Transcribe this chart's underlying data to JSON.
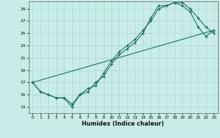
{
  "xlabel": "Humidex (Indice chaleur)",
  "bg_color": "#c8ece8",
  "grid_color": "#b0d8d4",
  "line_color": "#1a6b60",
  "xlim": [
    -0.5,
    23.5
  ],
  "ylim": [
    12.0,
    30.2
  ],
  "yticks": [
    13,
    15,
    17,
    19,
    21,
    23,
    25,
    27,
    29
  ],
  "xticks": [
    0,
    1,
    2,
    3,
    4,
    5,
    6,
    7,
    8,
    9,
    10,
    11,
    12,
    13,
    14,
    15,
    16,
    17,
    18,
    19,
    20,
    21,
    22,
    23
  ],
  "line1_x": [
    0,
    1,
    2,
    3,
    4,
    5,
    6,
    7,
    8,
    9,
    10,
    11,
    12,
    13,
    14,
    15,
    16,
    17,
    18,
    19,
    20,
    21,
    22,
    23
  ],
  "line1_y": [
    17,
    15.5,
    15,
    14.5,
    14.5,
    13,
    15,
    15.5,
    17,
    18,
    20,
    21.5,
    22.5,
    23.5,
    25,
    27.5,
    29.5,
    29.5,
    30,
    30,
    29,
    27.5,
    26,
    25
  ],
  "line2_x": [
    0,
    1,
    2,
    3,
    4,
    5,
    6,
    7,
    8,
    9,
    10,
    11,
    12,
    13,
    14,
    15,
    16,
    17,
    18,
    19,
    20,
    21,
    22,
    23
  ],
  "line2_y": [
    17,
    15.5,
    15,
    14.5,
    14.5,
    13.5,
    15,
    16,
    16.5,
    18.5,
    20.5,
    22,
    23,
    24,
    25.5,
    27,
    29,
    29.5,
    30,
    29.5,
    28.5,
    26,
    24.5,
    25.5
  ],
  "line3_x": [
    0,
    23
  ],
  "line3_y": [
    17,
    25.5
  ]
}
